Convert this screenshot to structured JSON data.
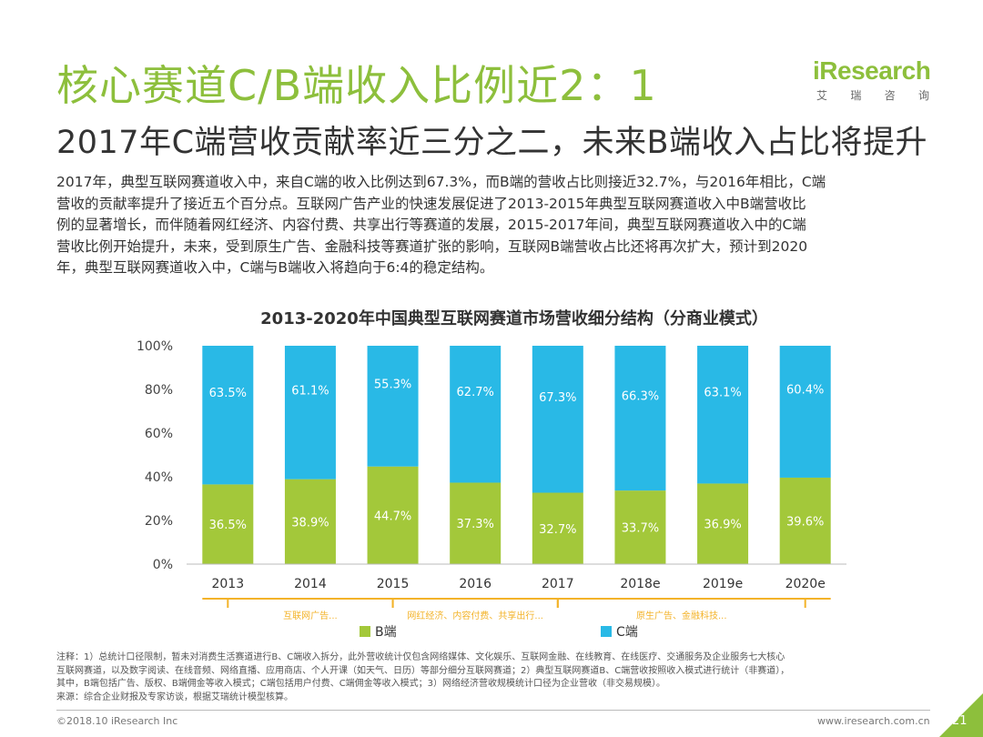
{
  "header": {
    "title": "核心赛道C/B端收入比例近2：1",
    "subtitle": "2017年C端营收贡献率近三分之二，未来B端收入占比将提升"
  },
  "logo": {
    "text": "iResearch",
    "sub_1": "艾",
    "sub_2": "瑞",
    "sub_3": "咨",
    "sub_4": "询"
  },
  "body": {
    "line_1": "2017年，典型互联网赛道收入中，来自C端的收入比例达到67.3%，而B端的营收占比则接近32.7%，与2016年相比，C端",
    "line_2": "营收的贡献率提升了接近五个百分点。互联网广告产业的快速发展促进了2013-2015年典型互联网赛道收入中B端营收比",
    "line_3": "例的显著增长，而伴随着网红经济、内容付费、共享出行等赛道的发展，2015-2017年间，典型互联网赛道收入中的C端",
    "line_4": "营收比例开始提升，未来，受到原生广告、金融科技等赛道扩张的影响，互联网B端营收占比还将再次扩大，预计到2020",
    "line_5": "年，典型互联网赛道收入中，C端与B端收入将趋向于6:4的稳定结构。"
  },
  "chart_data": {
    "type": "bar",
    "stacked": true,
    "title": "2013-2020年中国典型互联网赛道市场营收细分结构（分商业模式）",
    "categories": [
      "2013",
      "2014",
      "2015",
      "2016",
      "2017",
      "2018e",
      "2019e",
      "2020e"
    ],
    "series": [
      {
        "name": "B端",
        "color": "#a3c83a",
        "values": [
          36.5,
          38.9,
          44.7,
          37.3,
          32.7,
          33.7,
          36.9,
          39.6
        ],
        "labels": [
          "36.5%",
          "38.9%",
          "44.7%",
          "37.3%",
          "32.7%",
          "33.7%",
          "36.9%",
          "39.6%"
        ]
      },
      {
        "name": "C端",
        "color": "#29b9e6",
        "values": [
          63.5,
          61.1,
          55.3,
          62.7,
          67.3,
          66.3,
          63.1,
          60.4
        ],
        "labels": [
          "63.5%",
          "61.1%",
          "55.3%",
          "62.7%",
          "67.3%",
          "66.3%",
          "63.1%",
          "60.4%"
        ]
      }
    ],
    "yticks": [
      "0%",
      "20%",
      "40%",
      "60%",
      "80%",
      "100%"
    ],
    "ylim": [
      0,
      100
    ],
    "legend": [
      "B端",
      "C端"
    ],
    "legend_position": "bottom",
    "annotations": [
      {
        "text": "互联网广告...",
        "from": 0,
        "to": 2
      },
      {
        "text": "网红经济、内容付费、共享出行...",
        "from": 2,
        "to": 4
      },
      {
        "text": "原生广告、金融科技...",
        "from": 4,
        "to": 7
      }
    ]
  },
  "notes": {
    "line_1": "注释：1）总统计口径限制，暂未对消费生活赛道进行B、C端收入拆分，此外营收统计仅包含网络媒体、文化娱乐、互联网金融、在线教育、在线医疗、交通服务及企业服务七大核心",
    "line_2": "互联网赛道，以及数字阅读、在线音频、网络直播、应用商店、个人开课（如天气、日历）等部分细分互联网赛道；2）典型互联网赛道B、C端营收按照收入模式进行统计（非赛道），",
    "line_3": "其中，B端包括广告、版权、B端佣金等收入模式；C端包括用户付费、C端佣金等收入模式；3）网络经济营收规模统计口径为企业营收（非交易规模）。",
    "line_4": "来源：综合企业财报及专家访谈，根据艾瑞统计模型核算。"
  },
  "footer": {
    "copyright": "©2018.10 iResearch Inc",
    "url": "www.iresearch.com.cn",
    "page": "21"
  }
}
